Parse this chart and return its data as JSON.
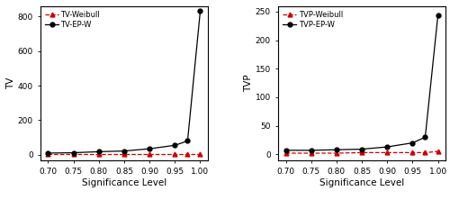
{
  "x": [
    0.7,
    0.75,
    0.8,
    0.85,
    0.9,
    0.95,
    0.975,
    1.0
  ],
  "tv_epw": [
    10,
    12,
    18,
    22,
    35,
    55,
    80,
    830
  ],
  "tv_weibull": [
    5,
    5,
    5,
    5,
    5,
    5,
    5,
    5
  ],
  "tvp_epw": [
    7,
    7,
    8,
    9,
    13,
    20,
    30,
    243
  ],
  "tvp_weibull": [
    2,
    2,
    2,
    3,
    3,
    3,
    3,
    5
  ],
  "left_ylabel": "TV",
  "right_ylabel": "TVP",
  "xlabel": "Significance Level",
  "left_legend1": "TV-Weibull",
  "left_legend2": "TV-EP-W",
  "right_legend1": "TVP-Weibull",
  "right_legend2": "TVP-EP-W",
  "left_ylim": [
    -30,
    860
  ],
  "right_ylim": [
    -10,
    260
  ],
  "left_yticks": [
    0,
    200,
    400,
    600,
    800
  ],
  "right_yticks": [
    0,
    50,
    100,
    150,
    200,
    250
  ],
  "xticks": [
    0.7,
    0.75,
    0.8,
    0.85,
    0.9,
    0.95,
    1.0
  ],
  "color_epw": "#000000",
  "color_weibull": "#cc0000",
  "bg_color": "#ffffff",
  "fontsize": 7.5
}
